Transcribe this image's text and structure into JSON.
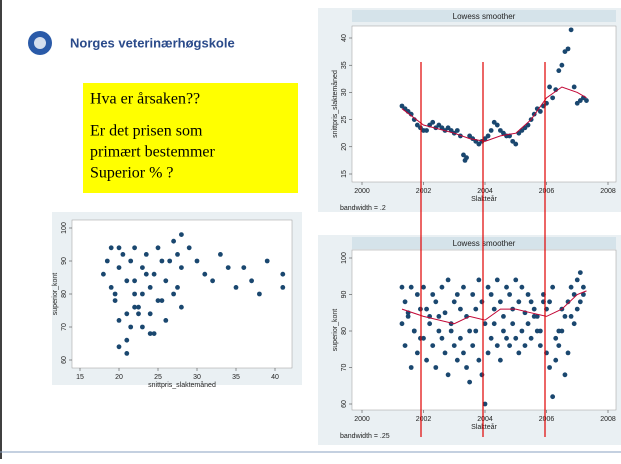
{
  "header": {
    "title": "Norges veterinærhøgskole"
  },
  "textbox": {
    "lines": [
      "Hva er årsaken??",
      "Er det prisen som",
      "primært bestemmer",
      "Superior % ?"
    ]
  },
  "chart_data": [
    {
      "type": "scatter",
      "title": "Lowess smoother",
      "xlabel": "Slakteår",
      "ylabel": "snittpris_slaktemåned",
      "note": "bandwidth = .2",
      "xlim": [
        2000,
        2008
      ],
      "xticks": [
        2000,
        2002,
        2004,
        2006,
        2008
      ],
      "ylim": [
        15,
        40
      ],
      "yticks": [
        15,
        20,
        25,
        30,
        35,
        40
      ],
      "series": [
        {
          "kind": "points",
          "color": "#1a476f",
          "x": [
            2001.3,
            2001.4,
            2001.5,
            2001.6,
            2001.7,
            2001.8,
            2001.9,
            2002.0,
            2002.1,
            2002.2,
            2002.3,
            2002.4,
            2002.5,
            2002.6,
            2002.7,
            2002.8,
            2002.9,
            2003.0,
            2003.1,
            2003.2,
            2003.3,
            2003.35,
            2003.4,
            2003.5,
            2003.6,
            2003.7,
            2003.8,
            2003.9,
            2004.0,
            2004.1,
            2004.2,
            2004.3,
            2004.4,
            2004.5,
            2004.6,
            2004.7,
            2004.8,
            2004.9,
            2005.0,
            2005.1,
            2005.2,
            2005.3,
            2005.4,
            2005.5,
            2005.6,
            2005.7,
            2005.8,
            2005.9,
            2006.0,
            2006.1,
            2006.2,
            2006.3,
            2006.4,
            2006.5,
            2006.6,
            2006.7,
            2006.8,
            2006.9,
            2007.0,
            2007.1,
            2007.2,
            2007.3
          ],
          "values": [
            27.5,
            27,
            26.5,
            26,
            25,
            24,
            23.5,
            23,
            23,
            24,
            24.5,
            23.5,
            24,
            23.5,
            23,
            23.5,
            23,
            22.5,
            23,
            22,
            18.5,
            17.5,
            18,
            22,
            21.5,
            21,
            20.5,
            21,
            21.5,
            22,
            23,
            24.5,
            24,
            23,
            22.5,
            22,
            22,
            21,
            20.5,
            22.5,
            23,
            23.5,
            24,
            25,
            26,
            27,
            26.5,
            27.5,
            28,
            31,
            29,
            30.5,
            34,
            35,
            37.5,
            38,
            41.5,
            31,
            28,
            28.5,
            29,
            28.5
          ]
        },
        {
          "kind": "line",
          "color": "#c10534",
          "x": [
            2001.3,
            2002,
            2003,
            2003.5,
            2004,
            2004.5,
            2005,
            2005.5,
            2006,
            2006.5,
            2007,
            2007.3
          ],
          "values": [
            27,
            24,
            22.5,
            21.5,
            21,
            22,
            22.5,
            25,
            29,
            31,
            30,
            29
          ]
        }
      ]
    },
    {
      "type": "scatter",
      "title": "Lowess smoother",
      "xlabel": "Slakteår",
      "ylabel": "superior_kont",
      "note": "bandwidth = .25",
      "xlim": [
        2000,
        2008
      ],
      "xticks": [
        2000,
        2002,
        2004,
        2006,
        2008
      ],
      "ylim": [
        60,
        100
      ],
      "yticks": [
        60,
        70,
        80,
        90,
        100
      ],
      "series": [
        {
          "kind": "points",
          "color": "#1a476f",
          "x": [
            2001.3,
            2001.4,
            2001.5,
            2001.6,
            2001.7,
            2001.8,
            2001.9,
            2002.0,
            2002.1,
            2002.2,
            2002.3,
            2002.4,
            2002.5,
            2002.6,
            2002.7,
            2002.8,
            2002.9,
            2003.0,
            2003.1,
            2003.2,
            2003.3,
            2003.4,
            2003.5,
            2003.6,
            2003.7,
            2003.8,
            2003.9,
            2004.0,
            2004.1,
            2004.2,
            2004.3,
            2004.4,
            2004.5,
            2004.6,
            2004.7,
            2004.8,
            2004.9,
            2005.0,
            2005.1,
            2005.2,
            2005.3,
            2005.4,
            2005.5,
            2005.6,
            2005.7,
            2005.8,
            2005.9,
            2006.0,
            2006.1,
            2006.2,
            2006.3,
            2006.4,
            2006.5,
            2006.6,
            2006.7,
            2006.8,
            2006.9,
            2007.0,
            2007.1,
            2007.2
          ],
          "values": [
            92,
            88,
            85,
            92,
            80,
            90,
            78,
            92,
            86,
            84,
            90,
            88,
            80,
            92,
            85,
            94,
            82,
            88,
            90,
            86,
            92,
            84,
            80,
            90,
            86,
            94,
            88,
            82,
            92,
            90,
            86,
            94,
            88,
            84,
            92,
            90,
            86,
            94,
            88,
            92,
            85,
            90,
            88,
            86,
            84,
            80,
            90,
            86,
            88,
            92,
            78,
            80,
            86,
            84,
            88,
            92,
            90,
            94,
            96,
            92
          ]
        },
        {
          "kind": "points",
          "color": "#1a476f",
          "x": [
            2001.3,
            2001.4,
            2001.5,
            2001.6,
            2001.7,
            2001.8,
            2001.9,
            2002.0,
            2002.1,
            2002.2,
            2002.3,
            2002.4,
            2002.5,
            2002.6,
            2002.7,
            2002.8,
            2002.9,
            2003.0,
            2003.1,
            2003.2,
            2003.3,
            2003.4,
            2003.5,
            2003.6,
            2003.7,
            2003.8,
            2003.9,
            2004.0,
            2004.1,
            2004.2,
            2004.3,
            2004.4,
            2004.5,
            2004.6,
            2004.7,
            2004.8,
            2004.9,
            2005.0,
            2005.1,
            2005.2,
            2005.3,
            2005.4,
            2005.5,
            2005.6,
            2005.7,
            2005.8,
            2005.9,
            2006.0,
            2006.1,
            2006.2,
            2006.3,
            2006.4,
            2006.5,
            2006.6,
            2006.7,
            2006.8,
            2006.9,
            2007.0,
            2007.1,
            2007.2
          ],
          "values": [
            82,
            76,
            84,
            70,
            80,
            74,
            86,
            78,
            72,
            82,
            76,
            70,
            84,
            78,
            74,
            68,
            80,
            76,
            72,
            78,
            74,
            70,
            66,
            76,
            80,
            72,
            68,
            60,
            74,
            78,
            82,
            76,
            72,
            80,
            78,
            76,
            82,
            78,
            74,
            80,
            76,
            82,
            78,
            84,
            80,
            76,
            88,
            74,
            70,
            62,
            72,
            76,
            80,
            68,
            74,
            84,
            82,
            86,
            88,
            90
          ]
        },
        {
          "kind": "line",
          "color": "#c10534",
          "x": [
            2001.3,
            2002,
            2003,
            2003.5,
            2004,
            2004.5,
            2005,
            2005.5,
            2006,
            2006.5,
            2007,
            2007.3
          ],
          "values": [
            86,
            84,
            82,
            84,
            83,
            86,
            86,
            85,
            84,
            86,
            90,
            91
          ]
        }
      ]
    },
    {
      "type": "scatter",
      "xlabel": "snittpris_slaktemåned",
      "ylabel": "superior_kont",
      "xlim": [
        15,
        40
      ],
      "xticks": [
        15,
        20,
        25,
        30,
        35,
        40
      ],
      "ylim": [
        60,
        100
      ],
      "yticks": [
        60,
        70,
        80,
        90,
        100
      ],
      "series": [
        {
          "kind": "points",
          "color": "#1a476f",
          "x": [
            18,
            18.5,
            19,
            19,
            19.5,
            20,
            20,
            20.5,
            21,
            21,
            21.5,
            22,
            22,
            22.5,
            23,
            23,
            23.5,
            24,
            24,
            24.5,
            25,
            25,
            25.5,
            26,
            26,
            27,
            27,
            27.5,
            28,
            28,
            28,
            29,
            30,
            31,
            32,
            33,
            34,
            35,
            36,
            37,
            38,
            39,
            41,
            41,
            20,
            21,
            22,
            23,
            24,
            21.5,
            22.5,
            23.5,
            19.5,
            26.5,
            27.5,
            25.5,
            24.5,
            22,
            21,
            20
          ],
          "values": [
            86,
            90,
            82,
            94,
            78,
            88,
            72,
            92,
            84,
            66,
            90,
            80,
            94,
            76,
            88,
            70,
            92,
            82,
            74,
            86,
            94,
            78,
            90,
            84,
            72,
            96,
            80,
            92,
            98,
            88,
            76,
            94,
            90,
            86,
            84,
            92,
            88,
            82,
            88,
            84,
            80,
            90,
            86,
            82,
            64,
            62,
            76,
            80,
            68,
            70,
            74,
            86,
            80,
            90,
            82,
            78,
            68,
            84,
            74,
            94
          ]
        }
      ]
    }
  ]
}
